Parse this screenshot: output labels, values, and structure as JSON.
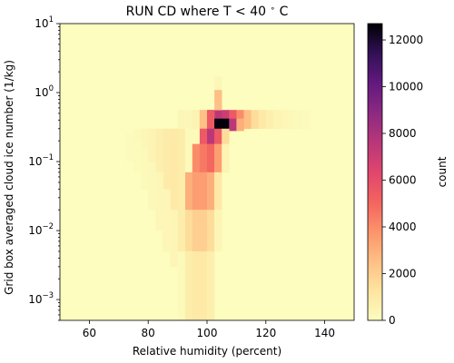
{
  "chart_data": {
    "type": "heatmap",
    "title": "RUN CD where T < 40 °C",
    "title_parts": {
      "main": "RUN CD where T",
      "relation": "<",
      "threshold": "40",
      "degree": "∘",
      "unit": "C"
    },
    "xlabel": "Relative humidity (percent)",
    "ylabel": "Grid box averaged cloud ice number (1/kg)",
    "x_range": [
      50,
      150
    ],
    "x_ticks": [
      60,
      80,
      100,
      120,
      140
    ],
    "x_tick_labels": [
      "60",
      "80",
      "100",
      "120",
      "140"
    ],
    "x_bin_width": 2.5,
    "y_scale": "log",
    "y_range": [
      0.0005,
      10
    ],
    "y_major_ticks": [
      {
        "value": 0.001,
        "base": "10",
        "exp": "−3"
      },
      {
        "value": 0.01,
        "base": "10",
        "exp": "−2"
      },
      {
        "value": 0.1,
        "base": "10",
        "exp": "−1"
      },
      {
        "value": 1,
        "base": "10",
        "exp": "0"
      },
      {
        "value": 10,
        "base": "10",
        "exp": "1"
      }
    ],
    "colorbar": {
      "label": "count",
      "range": [
        0,
        12700
      ],
      "ticks": [
        0,
        2000,
        4000,
        6000,
        8000,
        10000,
        12000
      ],
      "tick_labels": [
        "0",
        "2000",
        "4000",
        "6000",
        "8000",
        "10000",
        "12000"
      ],
      "colormap": "magma_r"
    },
    "cells": [
      [
        90,
        0.00051,
        0.3,
        150
      ],
      [
        92.5,
        0.00051,
        0.3,
        150
      ],
      [
        95,
        0.00051,
        0.3,
        150
      ],
      [
        97.5,
        0.00051,
        0.3,
        120
      ],
      [
        90,
        0.3,
        0.56,
        300
      ],
      [
        92.5,
        0.3,
        0.56,
        300
      ],
      [
        95,
        0.3,
        0.56,
        500
      ],
      [
        97.5,
        0.3,
        0.56,
        2500
      ],
      [
        100,
        0.3,
        0.56,
        5000
      ],
      [
        102.5,
        0.3,
        0.56,
        7500
      ],
      [
        105,
        0.3,
        0.56,
        7000
      ],
      [
        107.5,
        0.3,
        0.56,
        5500
      ],
      [
        110,
        0.3,
        0.56,
        4000
      ],
      [
        112.5,
        0.3,
        0.56,
        2500
      ],
      [
        115,
        0.3,
        0.56,
        1500
      ],
      [
        117.5,
        0.3,
        0.56,
        1000
      ],
      [
        120,
        0.3,
        0.56,
        700
      ],
      [
        122.5,
        0.3,
        0.56,
        500
      ],
      [
        125,
        0.3,
        0.56,
        350
      ],
      [
        127.5,
        0.3,
        0.56,
        250
      ],
      [
        130,
        0.3,
        0.56,
        150
      ],
      [
        132.5,
        0.3,
        0.56,
        100
      ],
      [
        102.5,
        0.56,
        1.1,
        2500
      ],
      [
        102.5,
        1.1,
        1.7,
        300
      ],
      [
        100,
        0.3,
        0.56,
        5500
      ],
      [
        102.5,
        0.28,
        0.42,
        12600
      ],
      [
        105,
        0.28,
        0.42,
        12600
      ],
      [
        107.5,
        0.28,
        0.42,
        7500
      ],
      [
        110,
        0.28,
        0.42,
        3000
      ],
      [
        97.5,
        0.18,
        0.3,
        5500
      ],
      [
        100,
        0.18,
        0.3,
        7500
      ],
      [
        102.5,
        0.18,
        0.3,
        5500
      ],
      [
        105,
        0.18,
        0.3,
        1500
      ],
      [
        95,
        0.07,
        0.18,
        4000
      ],
      [
        97.5,
        0.07,
        0.18,
        4500
      ],
      [
        100,
        0.07,
        0.18,
        5000
      ],
      [
        102.5,
        0.07,
        0.18,
        3500
      ],
      [
        105,
        0.07,
        0.18,
        500
      ],
      [
        92.5,
        0.02,
        0.07,
        3000
      ],
      [
        95,
        0.02,
        0.07,
        3500
      ],
      [
        97.5,
        0.02,
        0.07,
        3500
      ],
      [
        100,
        0.02,
        0.07,
        3000
      ],
      [
        102.5,
        0.02,
        0.07,
        1000
      ],
      [
        92.5,
        0.005,
        0.02,
        1500
      ],
      [
        95,
        0.005,
        0.02,
        2000
      ],
      [
        97.5,
        0.005,
        0.02,
        2000
      ],
      [
        100,
        0.005,
        0.02,
        1500
      ],
      [
        102.5,
        0.005,
        0.02,
        400
      ],
      [
        92.5,
        0.00051,
        0.005,
        800
      ],
      [
        95,
        0.00051,
        0.005,
        1000
      ],
      [
        97.5,
        0.00051,
        0.005,
        1000
      ],
      [
        100,
        0.00051,
        0.005,
        700
      ],
      [
        90,
        0.005,
        0.3,
        800
      ],
      [
        87.5,
        0.02,
        0.3,
        1000
      ],
      [
        85,
        0.04,
        0.3,
        900
      ],
      [
        82.5,
        0.07,
        0.3,
        700
      ],
      [
        80,
        0.1,
        0.3,
        500
      ],
      [
        77.5,
        0.15,
        0.3,
        300
      ],
      [
        75,
        0.2,
        0.3,
        150
      ],
      [
        87.5,
        0.003,
        0.02,
        400
      ],
      [
        85,
        0.005,
        0.04,
        350
      ],
      [
        82.5,
        0.01,
        0.07,
        300
      ],
      [
        80,
        0.02,
        0.1,
        250
      ],
      [
        77.5,
        0.04,
        0.15,
        200
      ],
      [
        75,
        0.07,
        0.2,
        120
      ],
      [
        72.5,
        0.1,
        0.25,
        80
      ]
    ]
  }
}
